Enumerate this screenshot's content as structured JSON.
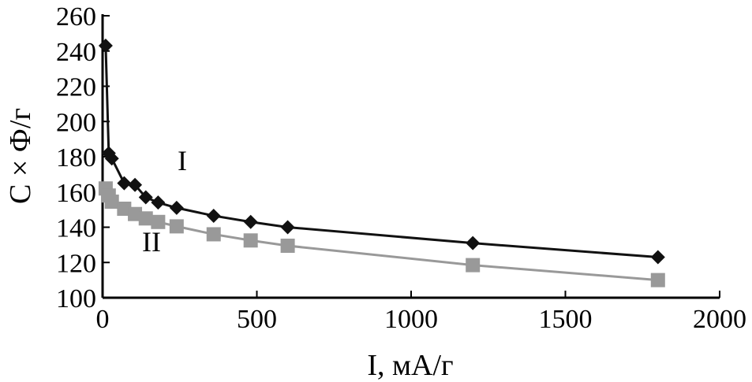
{
  "chart_data": {
    "type": "line",
    "xlabel": "I, мА/г",
    "ylabel": "C × Ф/г",
    "xlim": [
      0,
      2000
    ],
    "ylim": [
      100,
      260
    ],
    "xticks": [
      "0",
      "500",
      "1000",
      "1500",
      "2000"
    ],
    "yticks": [
      "100",
      "120",
      "140",
      "160",
      "180",
      "200",
      "220",
      "240",
      "260"
    ],
    "grid": false,
    "series": [
      {
        "name": "I",
        "color": "#111111",
        "marker": "diamond",
        "x": [
          10,
          20,
          30,
          70,
          105,
          140,
          180,
          240,
          360,
          480,
          600,
          1200,
          1800
        ],
        "y": [
          243,
          182,
          179,
          165,
          164,
          157,
          154,
          151,
          146.5,
          143,
          140,
          131,
          123
        ]
      },
      {
        "name": "II",
        "color": "#999999",
        "marker": "square",
        "x": [
          10,
          20,
          30,
          70,
          105,
          140,
          180,
          240,
          360,
          480,
          600,
          1200,
          1800
        ],
        "y": [
          162,
          158,
          154.5,
          150.5,
          147.5,
          145,
          143,
          140.5,
          136,
          132.5,
          129.5,
          118.5,
          110
        ]
      }
    ]
  }
}
